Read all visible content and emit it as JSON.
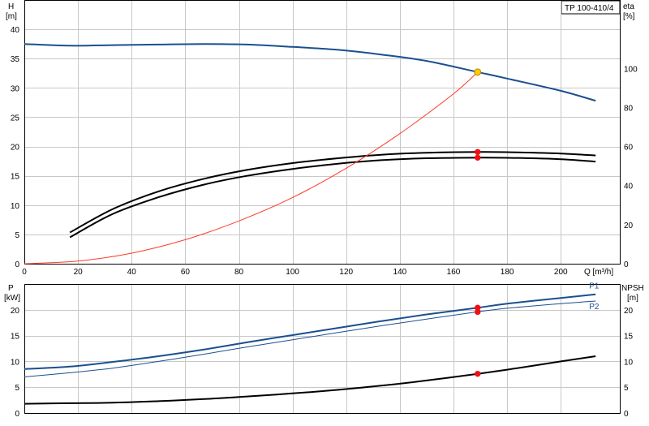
{
  "model_label": "TP 100-410/4",
  "colors": {
    "blue": "#1b4f8f",
    "black": "#000000",
    "red_curve": "#ff3a2a",
    "marker_red": "#ee1111",
    "marker_yellow": "#ffcc00",
    "grid": "#c8c8c8"
  },
  "chart_data": [
    {
      "type": "line",
      "title": "",
      "xlabel": "Q [m³/h]",
      "ylabel_left_top": "H",
      "ylabel_left_unit": "[m]",
      "ylabel_right_top": "eta",
      "ylabel_right_unit": "[%]",
      "xlim": [
        0,
        222
      ],
      "ylim": [
        0,
        45
      ],
      "ylim_right": [
        0,
        135
      ],
      "x_ticks": [
        0,
        20,
        40,
        60,
        80,
        100,
        120,
        140,
        160,
        180,
        200
      ],
      "y_ticks": [
        0,
        5,
        10,
        15,
        20,
        25,
        30,
        35,
        40
      ],
      "y_ticks_right": [
        0,
        20,
        40,
        60,
        80,
        100
      ],
      "grid": true,
      "series": [
        {
          "id": "H",
          "axis": "left",
          "color": "blue",
          "width": 2,
          "x": [
            0,
            17,
            33,
            50,
            67,
            83,
            100,
            117,
            133,
            150,
            169,
            180,
            200,
            213
          ],
          "y": [
            37.5,
            37.2,
            37.3,
            37.4,
            37.5,
            37.4,
            37.0,
            36.5,
            35.7,
            34.6,
            32.7,
            31.6,
            29.5,
            27.8
          ]
        },
        {
          "id": "eta-upper",
          "axis": "right",
          "color": "black",
          "width": 2,
          "x": [
            17,
            33,
            50,
            67,
            83,
            100,
            117,
            133,
            150,
            169,
            180,
            200,
            213
          ],
          "y": [
            16,
            28,
            37,
            43.5,
            48,
            51.5,
            54,
            55.8,
            56.8,
            57.2,
            57.1,
            56.4,
            55.4
          ]
        },
        {
          "id": "eta-lower",
          "axis": "right",
          "color": "black",
          "width": 2,
          "x": [
            17,
            33,
            50,
            67,
            83,
            100,
            117,
            133,
            150,
            169,
            180,
            200,
            213
          ],
          "y": [
            13.5,
            25.5,
            34,
            40.5,
            45,
            48.5,
            51.2,
            53,
            54,
            54.3,
            54.2,
            53.5,
            52.3
          ]
        },
        {
          "id": "system-curve",
          "axis": "left",
          "color": "red_curve",
          "width": 1,
          "x": [
            0,
            20,
            40,
            60,
            80,
            100,
            120,
            140,
            160,
            169
          ],
          "y": [
            0,
            0.45,
            1.8,
            4.1,
            7.3,
            11.3,
            16.3,
            22.2,
            29.0,
            32.7
          ]
        }
      ],
      "markers": [
        {
          "x": 169,
          "y": 32.7,
          "axis": "left",
          "color": "marker_yellow"
        },
        {
          "x": 169,
          "y": 57.2,
          "axis": "right",
          "color": "marker_red"
        },
        {
          "x": 169,
          "y": 54.3,
          "axis": "right",
          "color": "marker_red"
        }
      ]
    },
    {
      "type": "line",
      "title": "",
      "xlabel": "",
      "ylabel_left_top": "P",
      "ylabel_left_unit": "[kW]",
      "ylabel_right_top": "NPSH",
      "ylabel_right_unit": "[m]",
      "xlim": [
        0,
        222
      ],
      "ylim": [
        0,
        25
      ],
      "ylim_right": [
        0,
        25
      ],
      "y_ticks": [
        0,
        5,
        10,
        15,
        20
      ],
      "y_ticks_right": [
        0,
        5,
        10,
        15,
        20
      ],
      "grid": true,
      "series": [
        {
          "id": "P1",
          "name": "P1",
          "axis": "left",
          "color": "blue",
          "width": 2,
          "x": [
            0,
            17,
            33,
            50,
            67,
            83,
            100,
            117,
            133,
            150,
            169,
            180,
            200,
            213
          ],
          "y": [
            8.5,
            9.0,
            9.9,
            11.0,
            12.3,
            13.7,
            15.1,
            16.5,
            17.8,
            19.1,
            20.4,
            21.2,
            22.3,
            23.0
          ]
        },
        {
          "id": "P2",
          "name": "P2",
          "axis": "left",
          "color": "blue",
          "width": 1,
          "x": [
            0,
            17,
            33,
            50,
            67,
            83,
            100,
            117,
            133,
            150,
            169,
            180,
            200,
            213
          ],
          "y": [
            7.0,
            7.8,
            8.7,
            10.0,
            11.4,
            12.8,
            14.2,
            15.6,
            16.9,
            18.2,
            19.6,
            20.3,
            21.2,
            21.7
          ]
        },
        {
          "id": "NPSH",
          "axis": "right",
          "color": "black",
          "width": 2,
          "x": [
            0,
            17,
            33,
            50,
            67,
            83,
            100,
            117,
            133,
            150,
            169,
            180,
            200,
            213
          ],
          "y": [
            1.8,
            1.9,
            2.0,
            2.3,
            2.7,
            3.2,
            3.8,
            4.5,
            5.3,
            6.3,
            7.6,
            8.4,
            10.0,
            11.0
          ]
        }
      ],
      "markers": [
        {
          "x": 169,
          "y": 20.4,
          "axis": "left",
          "color": "marker_red"
        },
        {
          "x": 169,
          "y": 19.6,
          "axis": "left",
          "color": "marker_red"
        },
        {
          "x": 169,
          "y": 7.6,
          "axis": "right",
          "color": "marker_red"
        }
      ]
    }
  ]
}
